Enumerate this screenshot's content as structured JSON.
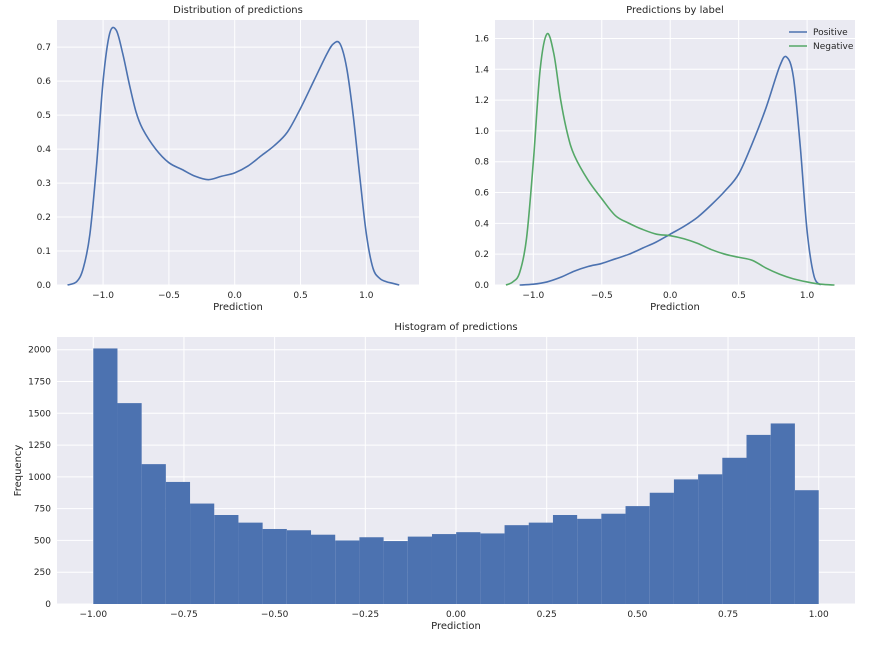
{
  "chart_data": [
    {
      "id": "dist",
      "type": "line",
      "title": "Distribution of predictions",
      "xlabel": "Prediction",
      "ylabel": "",
      "xlim": [
        -1.35,
        1.4
      ],
      "ylim": [
        0,
        0.78
      ],
      "xticks": [
        -1.0,
        -0.5,
        0.0,
        0.5,
        1.0
      ],
      "xtick_labels": [
        "−1.0",
        "−0.5",
        "0.0",
        "0.5",
        "1.0"
      ],
      "yticks": [
        0,
        0.1,
        0.2,
        0.3,
        0.4,
        0.5,
        0.6,
        0.7
      ],
      "ytick_labels": [
        "0.0",
        "0.1",
        "0.2",
        "0.3",
        "0.4",
        "0.5",
        "0.6",
        "0.7"
      ],
      "grid": true,
      "series": [
        {
          "color": "#4c72b0",
          "x": [
            -1.27,
            -1.2,
            -1.15,
            -1.1,
            -1.05,
            -1.0,
            -0.95,
            -0.9,
            -0.85,
            -0.8,
            -0.75,
            -0.7,
            -0.6,
            -0.5,
            -0.4,
            -0.3,
            -0.2,
            -0.1,
            0.0,
            0.1,
            0.2,
            0.3,
            0.4,
            0.5,
            0.6,
            0.7,
            0.75,
            0.8,
            0.85,
            0.9,
            0.95,
            1.0,
            1.05,
            1.1,
            1.15,
            1.2,
            1.25
          ],
          "y": [
            0.0,
            0.01,
            0.05,
            0.15,
            0.35,
            0.6,
            0.74,
            0.75,
            0.68,
            0.59,
            0.51,
            0.46,
            0.4,
            0.36,
            0.34,
            0.32,
            0.31,
            0.32,
            0.33,
            0.35,
            0.38,
            0.41,
            0.45,
            0.52,
            0.6,
            0.68,
            0.71,
            0.71,
            0.64,
            0.5,
            0.32,
            0.15,
            0.05,
            0.02,
            0.01,
            0.005,
            0.0
          ]
        }
      ]
    },
    {
      "id": "bylabel",
      "type": "line",
      "title": "Predictions by label",
      "xlabel": "Prediction",
      "ylabel": "",
      "xlim": [
        -1.28,
        1.35
      ],
      "ylim": [
        0,
        1.72
      ],
      "xticks": [
        -1.0,
        -0.5,
        0.0,
        0.5,
        1.0
      ],
      "xtick_labels": [
        "−1.0",
        "−0.5",
        "0.0",
        "0.5",
        "1.0"
      ],
      "yticks": [
        0,
        0.2,
        0.4,
        0.6,
        0.8,
        1.0,
        1.2,
        1.4,
        1.6
      ],
      "ytick_labels": [
        "0.0",
        "0.2",
        "0.4",
        "0.6",
        "0.8",
        "1.0",
        "1.2",
        "1.4",
        "1.6"
      ],
      "grid": true,
      "legend": "top-right",
      "series": [
        {
          "name": "Positive",
          "color": "#4c72b0",
          "x": [
            -1.1,
            -1.0,
            -0.9,
            -0.8,
            -0.7,
            -0.6,
            -0.5,
            -0.4,
            -0.3,
            -0.2,
            -0.1,
            0.0,
            0.1,
            0.2,
            0.3,
            0.4,
            0.5,
            0.6,
            0.7,
            0.8,
            0.85,
            0.9,
            0.95,
            1.0,
            1.05,
            1.1
          ],
          "y": [
            0.0,
            0.005,
            0.02,
            0.05,
            0.09,
            0.12,
            0.14,
            0.17,
            0.2,
            0.24,
            0.28,
            0.33,
            0.38,
            0.44,
            0.52,
            0.61,
            0.72,
            0.92,
            1.15,
            1.42,
            1.48,
            1.35,
            0.9,
            0.35,
            0.06,
            0.0
          ]
        },
        {
          "name": "Negative",
          "color": "#55a868",
          "x": [
            -1.2,
            -1.15,
            -1.1,
            -1.05,
            -1.0,
            -0.95,
            -0.9,
            -0.85,
            -0.8,
            -0.75,
            -0.7,
            -0.6,
            -0.5,
            -0.4,
            -0.3,
            -0.2,
            -0.1,
            0.0,
            0.1,
            0.2,
            0.3,
            0.4,
            0.5,
            0.6,
            0.7,
            0.8,
            0.9,
            1.0,
            1.1,
            1.2
          ],
          "y": [
            0.0,
            0.02,
            0.08,
            0.3,
            0.8,
            1.4,
            1.63,
            1.5,
            1.2,
            0.98,
            0.84,
            0.68,
            0.56,
            0.45,
            0.4,
            0.36,
            0.33,
            0.32,
            0.3,
            0.27,
            0.23,
            0.2,
            0.18,
            0.16,
            0.11,
            0.07,
            0.04,
            0.02,
            0.005,
            0.0
          ]
        }
      ]
    },
    {
      "id": "hist",
      "type": "bar",
      "title": "Histogram of predictions",
      "xlabel": "Prediction",
      "ylabel": "Frequency",
      "xlim": [
        -1.1,
        1.1
      ],
      "ylim": [
        0,
        2100
      ],
      "xticks": [
        -1.0,
        -0.75,
        -0.5,
        -0.25,
        0.0,
        0.25,
        0.5,
        0.75,
        1.0
      ],
      "xtick_labels": [
        "−1.00",
        "−0.75",
        "−0.50",
        "−0.25",
        "0.00",
        "0.25",
        "0.50",
        "0.75",
        "1.00"
      ],
      "yticks": [
        0,
        250,
        500,
        750,
        1000,
        1250,
        1500,
        1750,
        2000
      ],
      "ytick_labels": [
        "0",
        "250",
        "500",
        "750",
        "1000",
        "1250",
        "1500",
        "1750",
        "2000"
      ],
      "grid": true,
      "color": "#4c72b0",
      "bin_start": -1.0,
      "bin_width": 0.0667,
      "values": [
        2010,
        1580,
        1100,
        960,
        790,
        700,
        640,
        590,
        580,
        545,
        500,
        525,
        495,
        530,
        550,
        565,
        555,
        620,
        640,
        700,
        670,
        710,
        770,
        875,
        980,
        1020,
        1150,
        1330,
        1420,
        895
      ]
    }
  ]
}
